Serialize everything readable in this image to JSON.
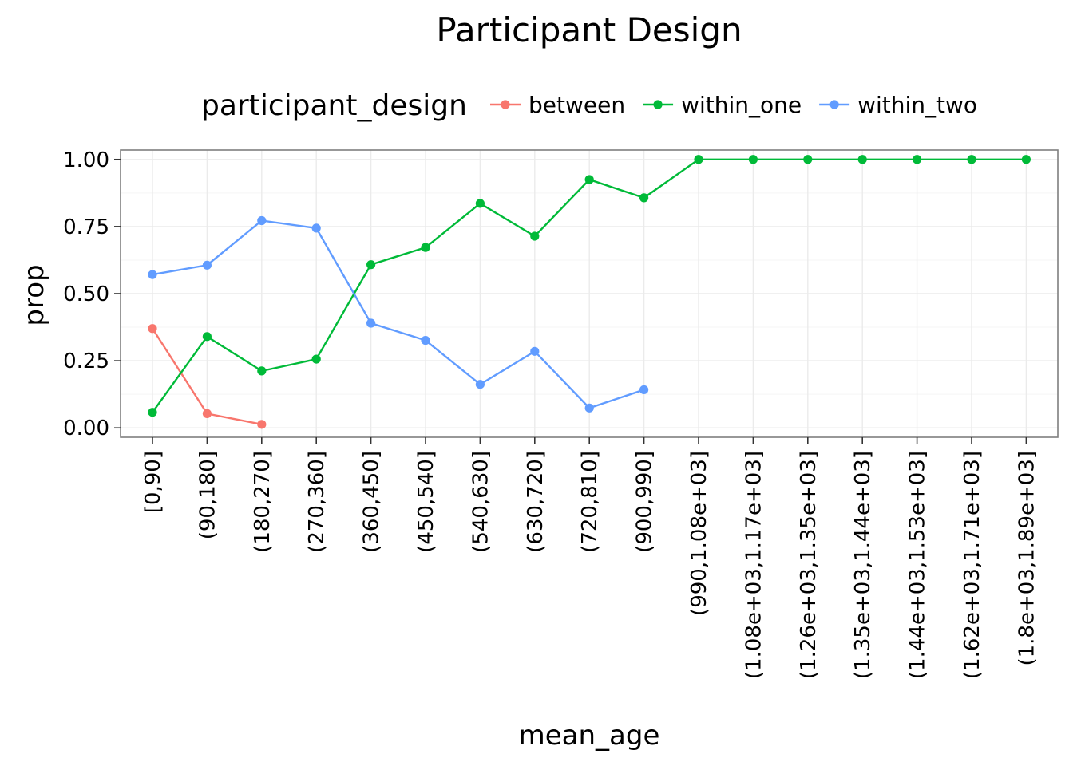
{
  "chart_data": {
    "type": "line",
    "title": "Participant Design",
    "xlabel": "mean_age",
    "ylabel": "prop",
    "ylim": [
      -0.035,
      1.035
    ],
    "yticks": [
      0,
      0.25,
      0.5,
      0.75,
      1.0
    ],
    "ytick_labels": [
      "0.00",
      "0.25",
      "0.50",
      "0.75",
      "1.00"
    ],
    "grid": true,
    "legend": {
      "title": "participant_design",
      "position": "top"
    },
    "categories": [
      "[0,90]",
      "(90,180]",
      "(180,270]",
      "(270,360]",
      "(360,450]",
      "(450,540]",
      "(540,630]",
      "(630,720]",
      "(720,810]",
      "(900,990]",
      "(990,1.08e+03]",
      "(1.08e+03,1.17e+03]",
      "(1.26e+03,1.35e+03]",
      "(1.35e+03,1.44e+03]",
      "(1.44e+03,1.53e+03]",
      "(1.62e+03,1.71e+03]",
      "(1.8e+03,1.89e+03]"
    ],
    "series": [
      {
        "name": "between",
        "color": "#F8766D",
        "values": [
          0.37,
          0.053,
          0.013,
          null,
          null,
          null,
          null,
          null,
          null,
          null,
          null,
          null,
          null,
          null,
          null,
          null,
          null
        ]
      },
      {
        "name": "within_one",
        "color": "#00BA38",
        "values": [
          0.058,
          0.34,
          0.212,
          0.256,
          0.608,
          0.672,
          0.836,
          0.714,
          0.925,
          0.857,
          1.0,
          1.0,
          1.0,
          1.0,
          1.0,
          1.0,
          1.0
        ]
      },
      {
        "name": "within_two",
        "color": "#619CFF",
        "values": [
          0.571,
          0.606,
          0.772,
          0.744,
          0.39,
          0.326,
          0.162,
          0.285,
          0.074,
          0.142,
          null,
          null,
          null,
          null,
          null,
          null,
          null
        ]
      }
    ]
  }
}
